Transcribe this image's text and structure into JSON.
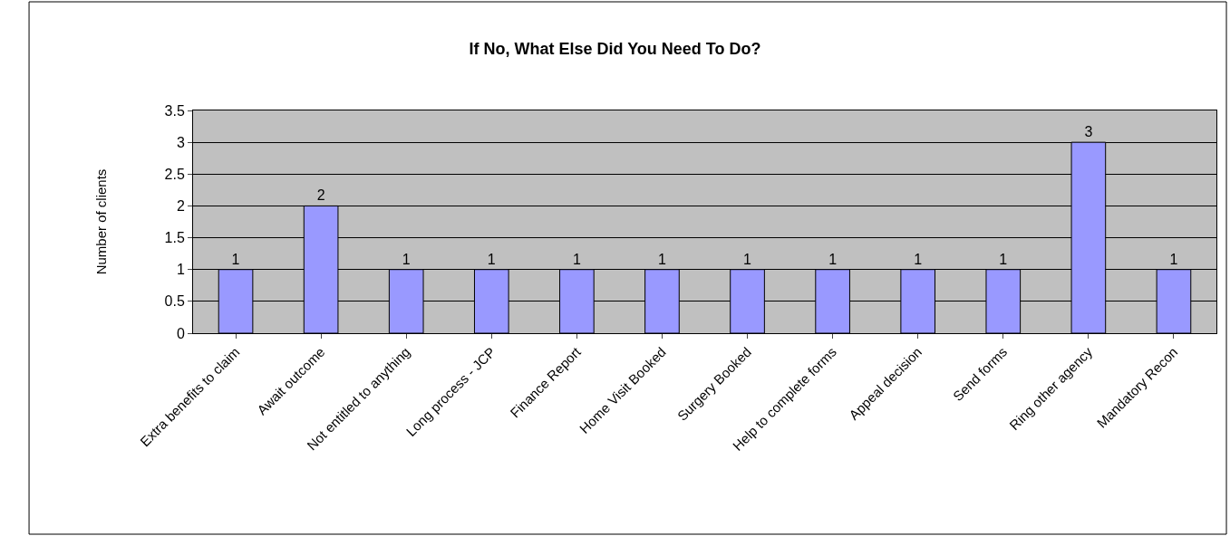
{
  "chart_data": {
    "type": "bar",
    "title": "If No, What Else Did You Need To Do?",
    "ylabel": "Number of clients",
    "categories": [
      "Extra benefits to claim",
      "Await outcome",
      "Not entitled to anything",
      "Long process - JCP",
      "Finance Report",
      "Home Visit Booked",
      "Surgery Booked",
      "Help to complete forms",
      "Appeal decision",
      "Send forms",
      "Ring other agency",
      "Mandatory Recon"
    ],
    "values": [
      1,
      2,
      1,
      1,
      1,
      1,
      1,
      1,
      1,
      1,
      3,
      1
    ],
    "color": "#9999ff",
    "ylim": [
      0,
      3.5
    ],
    "yticks": [
      0,
      0.5,
      1,
      1.5,
      2,
      2.5,
      3,
      3.5
    ],
    "grid": "y",
    "data_labels": true,
    "legend": false
  }
}
